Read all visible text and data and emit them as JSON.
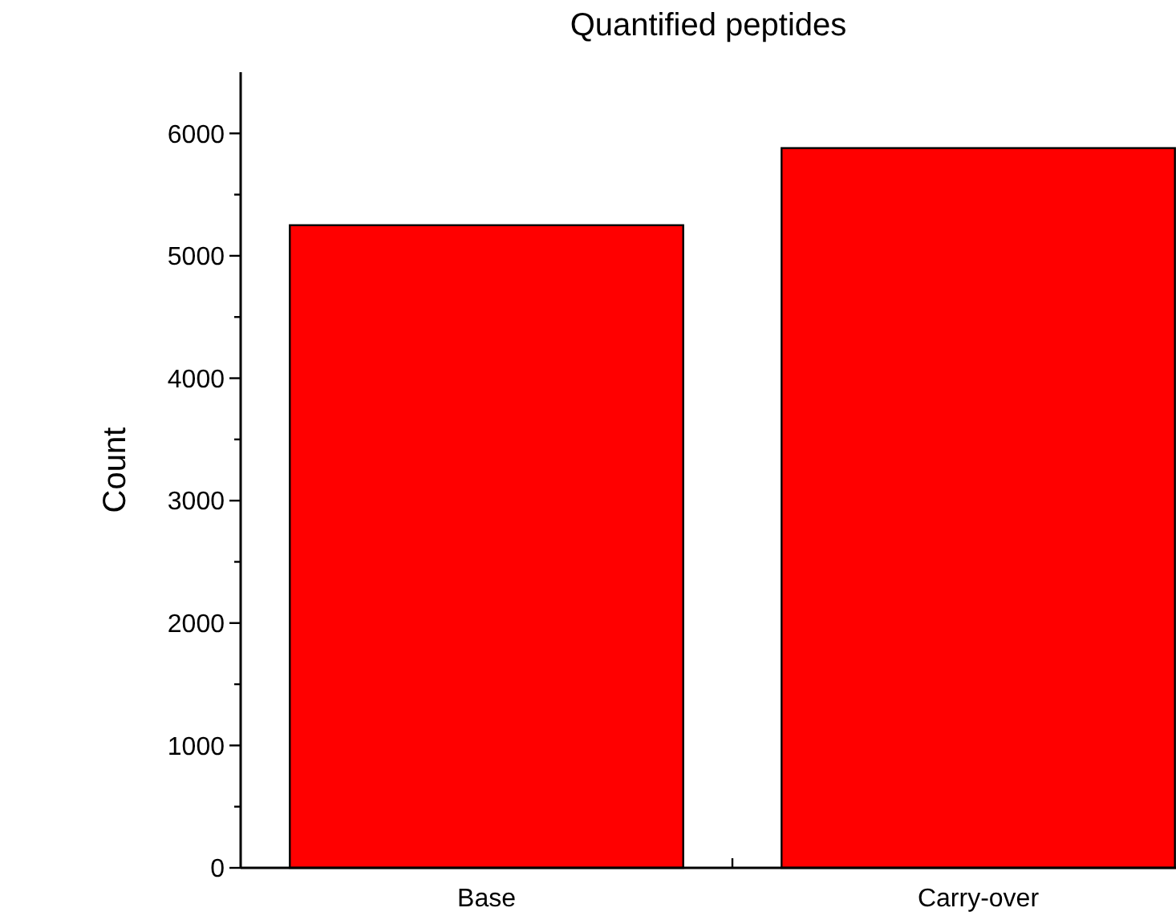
{
  "chart_data": {
    "type": "bar",
    "title": "Quantified peptides",
    "ylabel": "Count",
    "categories": [
      "Base",
      "Carry-over"
    ],
    "values": [
      5250,
      5880
    ],
    "color": "#ff0000",
    "ylim": [
      0,
      6500
    ],
    "yticks": [
      0,
      {
        "value": 500,
        "label": null
      },
      1000,
      {
        "value": 1500,
        "label": null
      },
      2000,
      {
        "value": 2500,
        "label": null
      },
      3000,
      {
        "value": 3500,
        "label": null
      },
      4000,
      {
        "value": 4500,
        "label": null
      },
      5000,
      {
        "value": 5500,
        "label": null
      },
      6000
    ],
    "grid": false
  }
}
